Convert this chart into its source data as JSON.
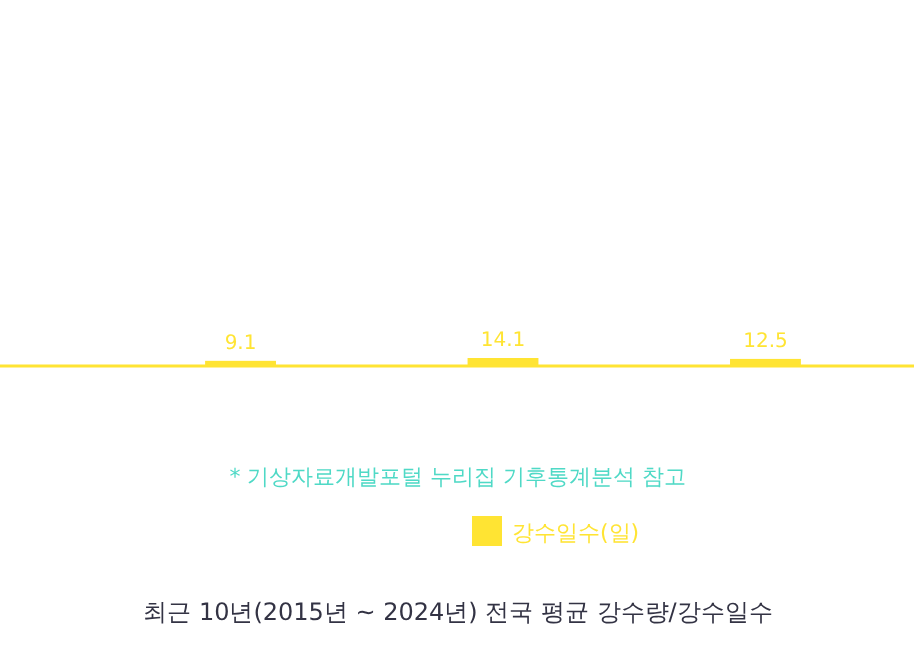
{
  "chart_data": {
    "type": "bar",
    "title": "최근 10년(2015년 ~ 2024년) 전국 평균 강수량/강수일수",
    "categories": [
      null,
      null,
      null
    ],
    "series": [
      {
        "name": "강수일수(일)",
        "color": "#ffe433",
        "values": [
          9.1,
          14.1,
          12.5
        ]
      }
    ],
    "data_labels": true,
    "legend": "bottom",
    "annotations": [
      "* 기상자료개발포털 누리집 기후통계분석 참고"
    ]
  }
}
